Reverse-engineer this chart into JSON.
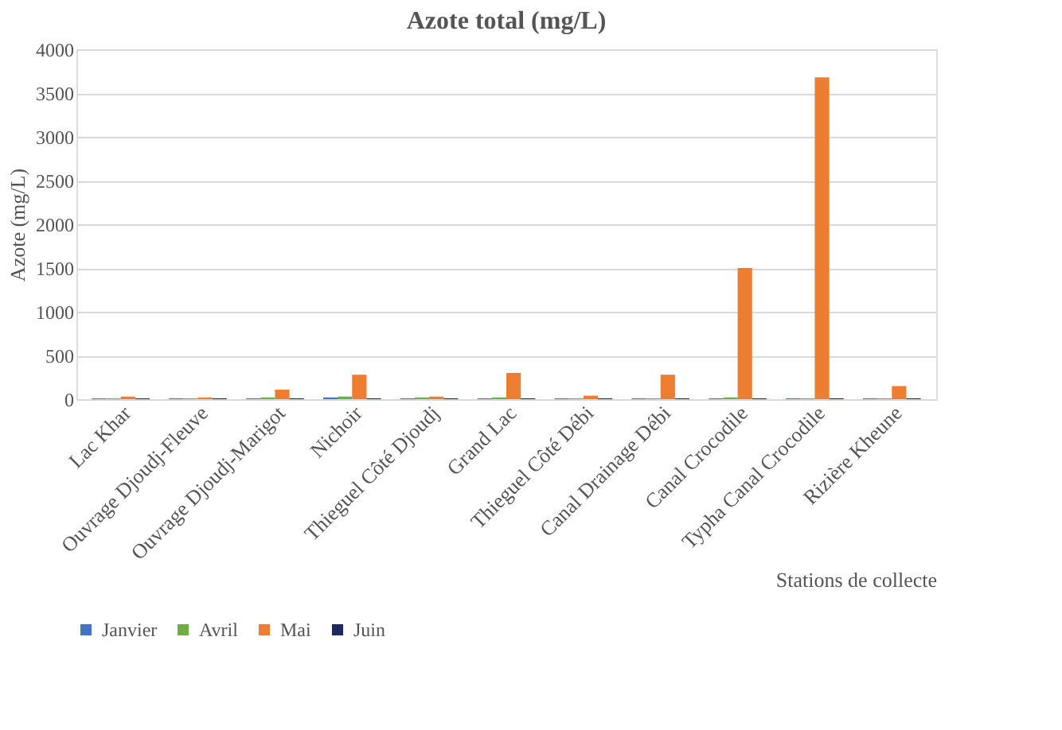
{
  "chart_data": {
    "type": "bar",
    "title": "Azote total (mg/L)",
    "xlabel": "Stations de collecte",
    "ylabel": "Azote (mg/L)",
    "categories": [
      "Lac Khar",
      "Ouvrage Djoudj-Fleuve",
      "Ouvrage Djoudj-Marigot",
      "Nichoir",
      "Thieguel Côté Djoudj",
      "Grand Lac",
      "Thieguel Côté Débi",
      "Canal Drainage Débi",
      "Canal Crocodile",
      "Typha Canal Crocodile",
      "Rizière Kheune"
    ],
    "series": [
      {
        "name": "Janvier",
        "color": "#4472c4",
        "values": [
          10,
          10,
          10,
          20,
          10,
          10,
          10,
          10,
          10,
          10,
          10
        ]
      },
      {
        "name": "Avril",
        "color": "#70ad47",
        "values": [
          10,
          10,
          20,
          30,
          20,
          20,
          10,
          10,
          20,
          10,
          10
        ]
      },
      {
        "name": "Mai",
        "color": "#ed7d31",
        "values": [
          30,
          20,
          110,
          280,
          30,
          300,
          40,
          280,
          1500,
          3680,
          150
        ]
      },
      {
        "name": "Juin",
        "color": "#1f2a5c",
        "values": [
          10,
          10,
          10,
          10,
          10,
          10,
          10,
          10,
          10,
          10,
          10
        ]
      }
    ],
    "ylim": [
      0,
      4000
    ],
    "yticks": [
      0,
      500,
      1000,
      1500,
      2000,
      2500,
      3000,
      3500,
      4000
    ],
    "grid": "y",
    "legend": "bottom"
  }
}
